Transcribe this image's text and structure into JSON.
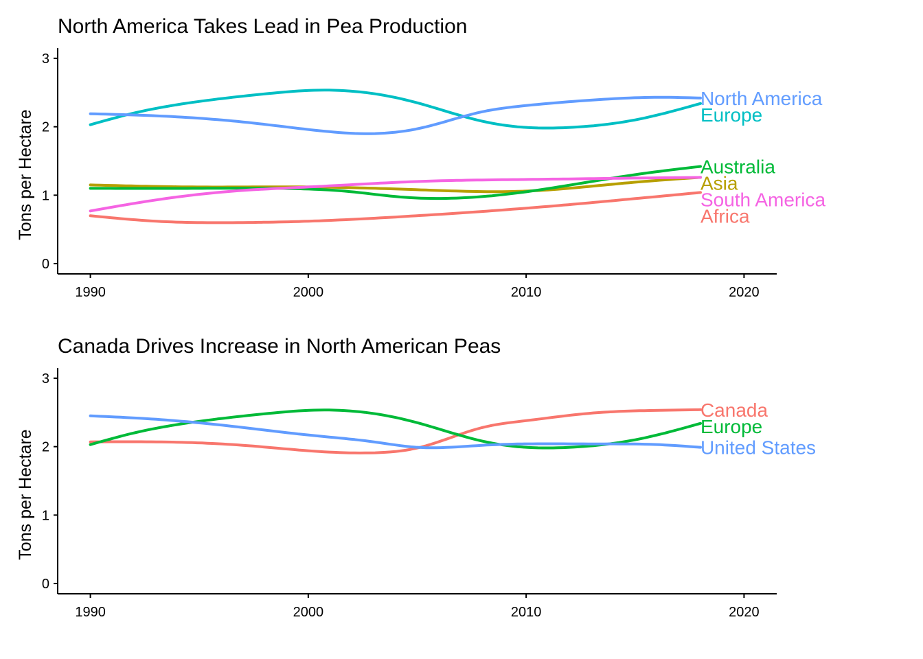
{
  "chart_data": [
    {
      "type": "line",
      "title": "North America Takes Lead in Pea Production",
      "xlabel": "",
      "ylabel": "Tons per Hectare",
      "xlim": [
        1988.5,
        2021.5
      ],
      "ylim": [
        -0.15,
        3.15
      ],
      "xticks": [
        1990,
        2000,
        2010,
        2020
      ],
      "yticks": [
        0,
        1,
        2,
        3
      ],
      "grid": false,
      "legend": "direct labels at line ends",
      "series": [
        {
          "name": "Asia",
          "color": "#B79F00",
          "x": [
            1990,
            1995,
            2000,
            2005,
            2010,
            2015,
            2018
          ],
          "y": [
            1.15,
            1.12,
            1.12,
            1.08,
            1.06,
            1.19,
            1.26
          ]
        },
        {
          "name": "Europe",
          "color": "#00BFC4",
          "x": [
            1990,
            1992,
            1995,
            1998,
            2000,
            2002,
            2005,
            2008,
            2010,
            2012,
            2015,
            2018
          ],
          "y": [
            2.03,
            2.2,
            2.37,
            2.48,
            2.53,
            2.52,
            2.35,
            2.08,
            1.99,
            1.99,
            2.1,
            2.34
          ]
        },
        {
          "name": "North America",
          "color": "#619CFF",
          "x": [
            1990,
            1993,
            1997,
            2000,
            2003,
            2005,
            2008,
            2010,
            2013,
            2016,
            2018
          ],
          "y": [
            2.19,
            2.16,
            2.07,
            1.96,
            1.9,
            1.97,
            2.22,
            2.31,
            2.39,
            2.43,
            2.42
          ]
        },
        {
          "name": "Australia",
          "color": "#00BA38",
          "x": [
            1990,
            1995,
            2000,
            2002,
            2004,
            2007,
            2010,
            2015,
            2018
          ],
          "y": [
            1.1,
            1.1,
            1.09,
            1.05,
            0.98,
            0.96,
            1.05,
            1.3,
            1.42
          ]
        },
        {
          "name": "South America",
          "color": "#F564E3",
          "x": [
            1990,
            1993,
            1997,
            2000,
            2005,
            2010,
            2015,
            2018
          ],
          "y": [
            0.77,
            0.93,
            1.07,
            1.12,
            1.2,
            1.23,
            1.25,
            1.26
          ]
        },
        {
          "name": "Africa",
          "color": "#F8766D",
          "x": [
            1990,
            1993,
            1997,
            2000,
            2005,
            2010,
            2015,
            2018
          ],
          "y": [
            0.7,
            0.62,
            0.6,
            0.62,
            0.7,
            0.81,
            0.95,
            1.04
          ]
        }
      ]
    },
    {
      "type": "line",
      "title": "Canada Drives Increase in North American Peas",
      "xlabel": "",
      "ylabel": "Tons per Hectare",
      "xlim": [
        1988.5,
        2021.5
      ],
      "ylim": [
        -0.15,
        3.15
      ],
      "xticks": [
        1990,
        2000,
        2010,
        2020
      ],
      "yticks": [
        0,
        1,
        2,
        3
      ],
      "grid": false,
      "legend": "direct labels at line ends",
      "series": [
        {
          "name": "Canada",
          "color": "#F8766D",
          "x": [
            1990,
            1993,
            1997,
            2000,
            2003,
            2005,
            2008,
            2010,
            2013,
            2016,
            2018
          ],
          "y": [
            2.07,
            2.07,
            2.02,
            1.94,
            1.91,
            1.98,
            2.28,
            2.38,
            2.49,
            2.53,
            2.54
          ]
        },
        {
          "name": "Europe",
          "color": "#00BA38",
          "x": [
            1990,
            1992,
            1995,
            1998,
            2000,
            2002,
            2005,
            2008,
            2010,
            2012,
            2015,
            2018
          ],
          "y": [
            2.03,
            2.2,
            2.37,
            2.48,
            2.53,
            2.52,
            2.35,
            2.08,
            1.99,
            1.99,
            2.1,
            2.34
          ]
        },
        {
          "name": "United States",
          "color": "#619CFF",
          "x": [
            1990,
            1993,
            1997,
            2000,
            2003,
            2005,
            2008,
            2010,
            2013,
            2016,
            2018
          ],
          "y": [
            2.45,
            2.4,
            2.28,
            2.17,
            2.07,
            1.99,
            2.02,
            2.04,
            2.04,
            2.03,
            1.99
          ]
        }
      ]
    }
  ]
}
